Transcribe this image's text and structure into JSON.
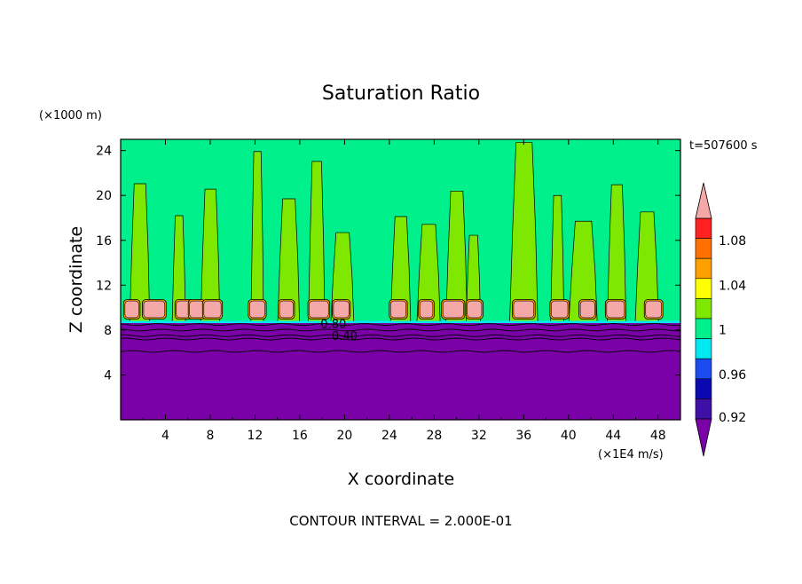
{
  "chart_data": {
    "type": "heatmap",
    "title": "Saturation Ratio",
    "xlabel": "X coordinate",
    "ylabel": "Z coordinate",
    "x_unit": "(×1E4 m/s)",
    "y_unit": "(×1000 m)",
    "time_label": "t=507600 s",
    "footer": "CONTOUR INTERVAL = 2.000E-01",
    "xlim": [
      0,
      50
    ],
    "ylim": [
      0,
      25
    ],
    "x_ticks": [
      4,
      8,
      12,
      16,
      20,
      24,
      28,
      32,
      36,
      40,
      44,
      48
    ],
    "y_ticks": [
      4,
      8,
      12,
      16,
      20,
      24
    ],
    "contour_labels": [
      {
        "text": "0.80",
        "x": 19,
        "z": 8.6
      },
      {
        "text": "0.40",
        "x": 20,
        "z": 7.5
      }
    ],
    "colorbar": {
      "levels": [
        0.92,
        0.94,
        0.96,
        0.98,
        1.0,
        1.02,
        1.04,
        1.06,
        1.08,
        1.1
      ],
      "tick_labels": [
        "0.92",
        "0.96",
        "1",
        "1.04",
        "1.08"
      ],
      "tick_values": [
        0.92,
        0.96,
        1.0,
        1.04,
        1.08
      ],
      "colors": [
        "#7a00a8",
        "#3f10a8",
        "#0a08b0",
        "#1a4cf0",
        "#00e8f0",
        "#00f08c",
        "#7ee800",
        "#ffff00",
        "#ffa000",
        "#ff7000",
        "#ff2020",
        "#f4a8a8"
      ]
    },
    "fields": {
      "dry_layer": {
        "value_range": "< 0.92",
        "z_top": 8.7
      },
      "upper_layer": {
        "value_range": "0.98-1.02",
        "z_bottom": 8.7,
        "z_top": 25
      },
      "plume_x": [
        1.7,
        5.2,
        8.0,
        12.2,
        15.0,
        17.5,
        19.8,
        25.0,
        27.5,
        30.0,
        31.5,
        36.0,
        39.0,
        41.3,
        44.3,
        47.0
      ],
      "cloud_x": [
        1.0,
        3.0,
        5.7,
        6.8,
        8.2,
        12.2,
        14.8,
        17.7,
        19.7,
        24.8,
        27.3,
        29.7,
        31.6,
        36.0,
        39.2,
        41.7,
        44.2,
        47.6
      ],
      "cloud_z": [
        9.1,
        10.6
      ]
    }
  }
}
